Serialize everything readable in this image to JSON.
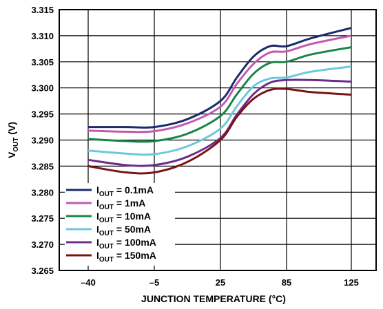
{
  "chart_data": {
    "type": "line",
    "ylabel_main": "V",
    "ylabel_sub": "OUT",
    "ylabel_unit": " (V)",
    "xlabel": "JUNCTION TEMPERATURE (°C)",
    "x_tick_labels": [
      "–40",
      "–5",
      "25",
      "85",
      "125"
    ],
    "y_tick_labels": [
      "3.265",
      "3.270",
      "3.275",
      "3.280",
      "3.285",
      "3.290",
      "3.295",
      "3.300",
      "3.305",
      "3.310",
      "3.315"
    ],
    "ylim": [
      3.265,
      3.315
    ],
    "grid": true,
    "legend_position": "bottom-left",
    "series": [
      {
        "name_main": "I",
        "name_sub": "OUT",
        "name_rest": " = 0.1mA",
        "color": "#1b2a6b",
        "x": [
          -40,
          -20,
          -5,
          10,
          25,
          40,
          55,
          70,
          85,
          100,
          125
        ],
        "values": [
          3.2925,
          3.2925,
          3.2925,
          3.294,
          3.2975,
          3.302,
          3.306,
          3.308,
          3.308,
          3.3095,
          3.3115
        ]
      },
      {
        "name_main": "I",
        "name_sub": "OUT",
        "name_rest": " = 1mA",
        "color": "#c25ab0",
        "x": [
          -40,
          -20,
          -5,
          10,
          25,
          40,
          55,
          70,
          85,
          100,
          125
        ],
        "values": [
          3.2918,
          3.2916,
          3.2917,
          3.2932,
          3.2964,
          3.3008,
          3.3046,
          3.3068,
          3.307,
          3.3084,
          3.31
        ]
      },
      {
        "name_main": "I",
        "name_sub": "OUT",
        "name_rest": " = 10mA",
        "color": "#158548",
        "x": [
          -40,
          -20,
          -5,
          10,
          25,
          40,
          55,
          70,
          85,
          100,
          125
        ],
        "values": [
          3.2902,
          3.2898,
          3.2898,
          3.2912,
          3.2946,
          3.2988,
          3.3027,
          3.3048,
          3.305,
          3.3064,
          3.3078
        ]
      },
      {
        "name_main": "I",
        "name_sub": "OUT",
        "name_rest": " = 50mA",
        "color": "#6fc8d9",
        "x": [
          -40,
          -20,
          -5,
          10,
          25,
          40,
          55,
          70,
          85,
          100,
          125
        ],
        "values": [
          3.288,
          3.2874,
          3.2873,
          3.2888,
          3.2922,
          3.2965,
          3.3003,
          3.3018,
          3.302,
          3.3031,
          3.3041
        ]
      },
      {
        "name_main": "I",
        "name_sub": "OUT",
        "name_rest": " = 100mA",
        "color": "#6b2c8a",
        "x": [
          -40,
          -20,
          -5,
          10,
          25,
          40,
          55,
          70,
          85,
          100,
          125
        ],
        "values": [
          3.2862,
          3.2852,
          3.2852,
          3.2868,
          3.2904,
          3.2949,
          3.2988,
          3.301,
          3.3015,
          3.3015,
          3.3012
        ]
      },
      {
        "name_main": "I",
        "name_sub": "OUT",
        "name_rest": " = 150mA",
        "color": "#7a1414",
        "x": [
          -40,
          -20,
          -5,
          10,
          25,
          40,
          55,
          70,
          85,
          100,
          125
        ],
        "values": [
          3.285,
          3.2838,
          3.2838,
          3.2858,
          3.29,
          3.2945,
          3.2979,
          3.2996,
          3.2998,
          3.2992,
          3.2987
        ]
      }
    ]
  }
}
